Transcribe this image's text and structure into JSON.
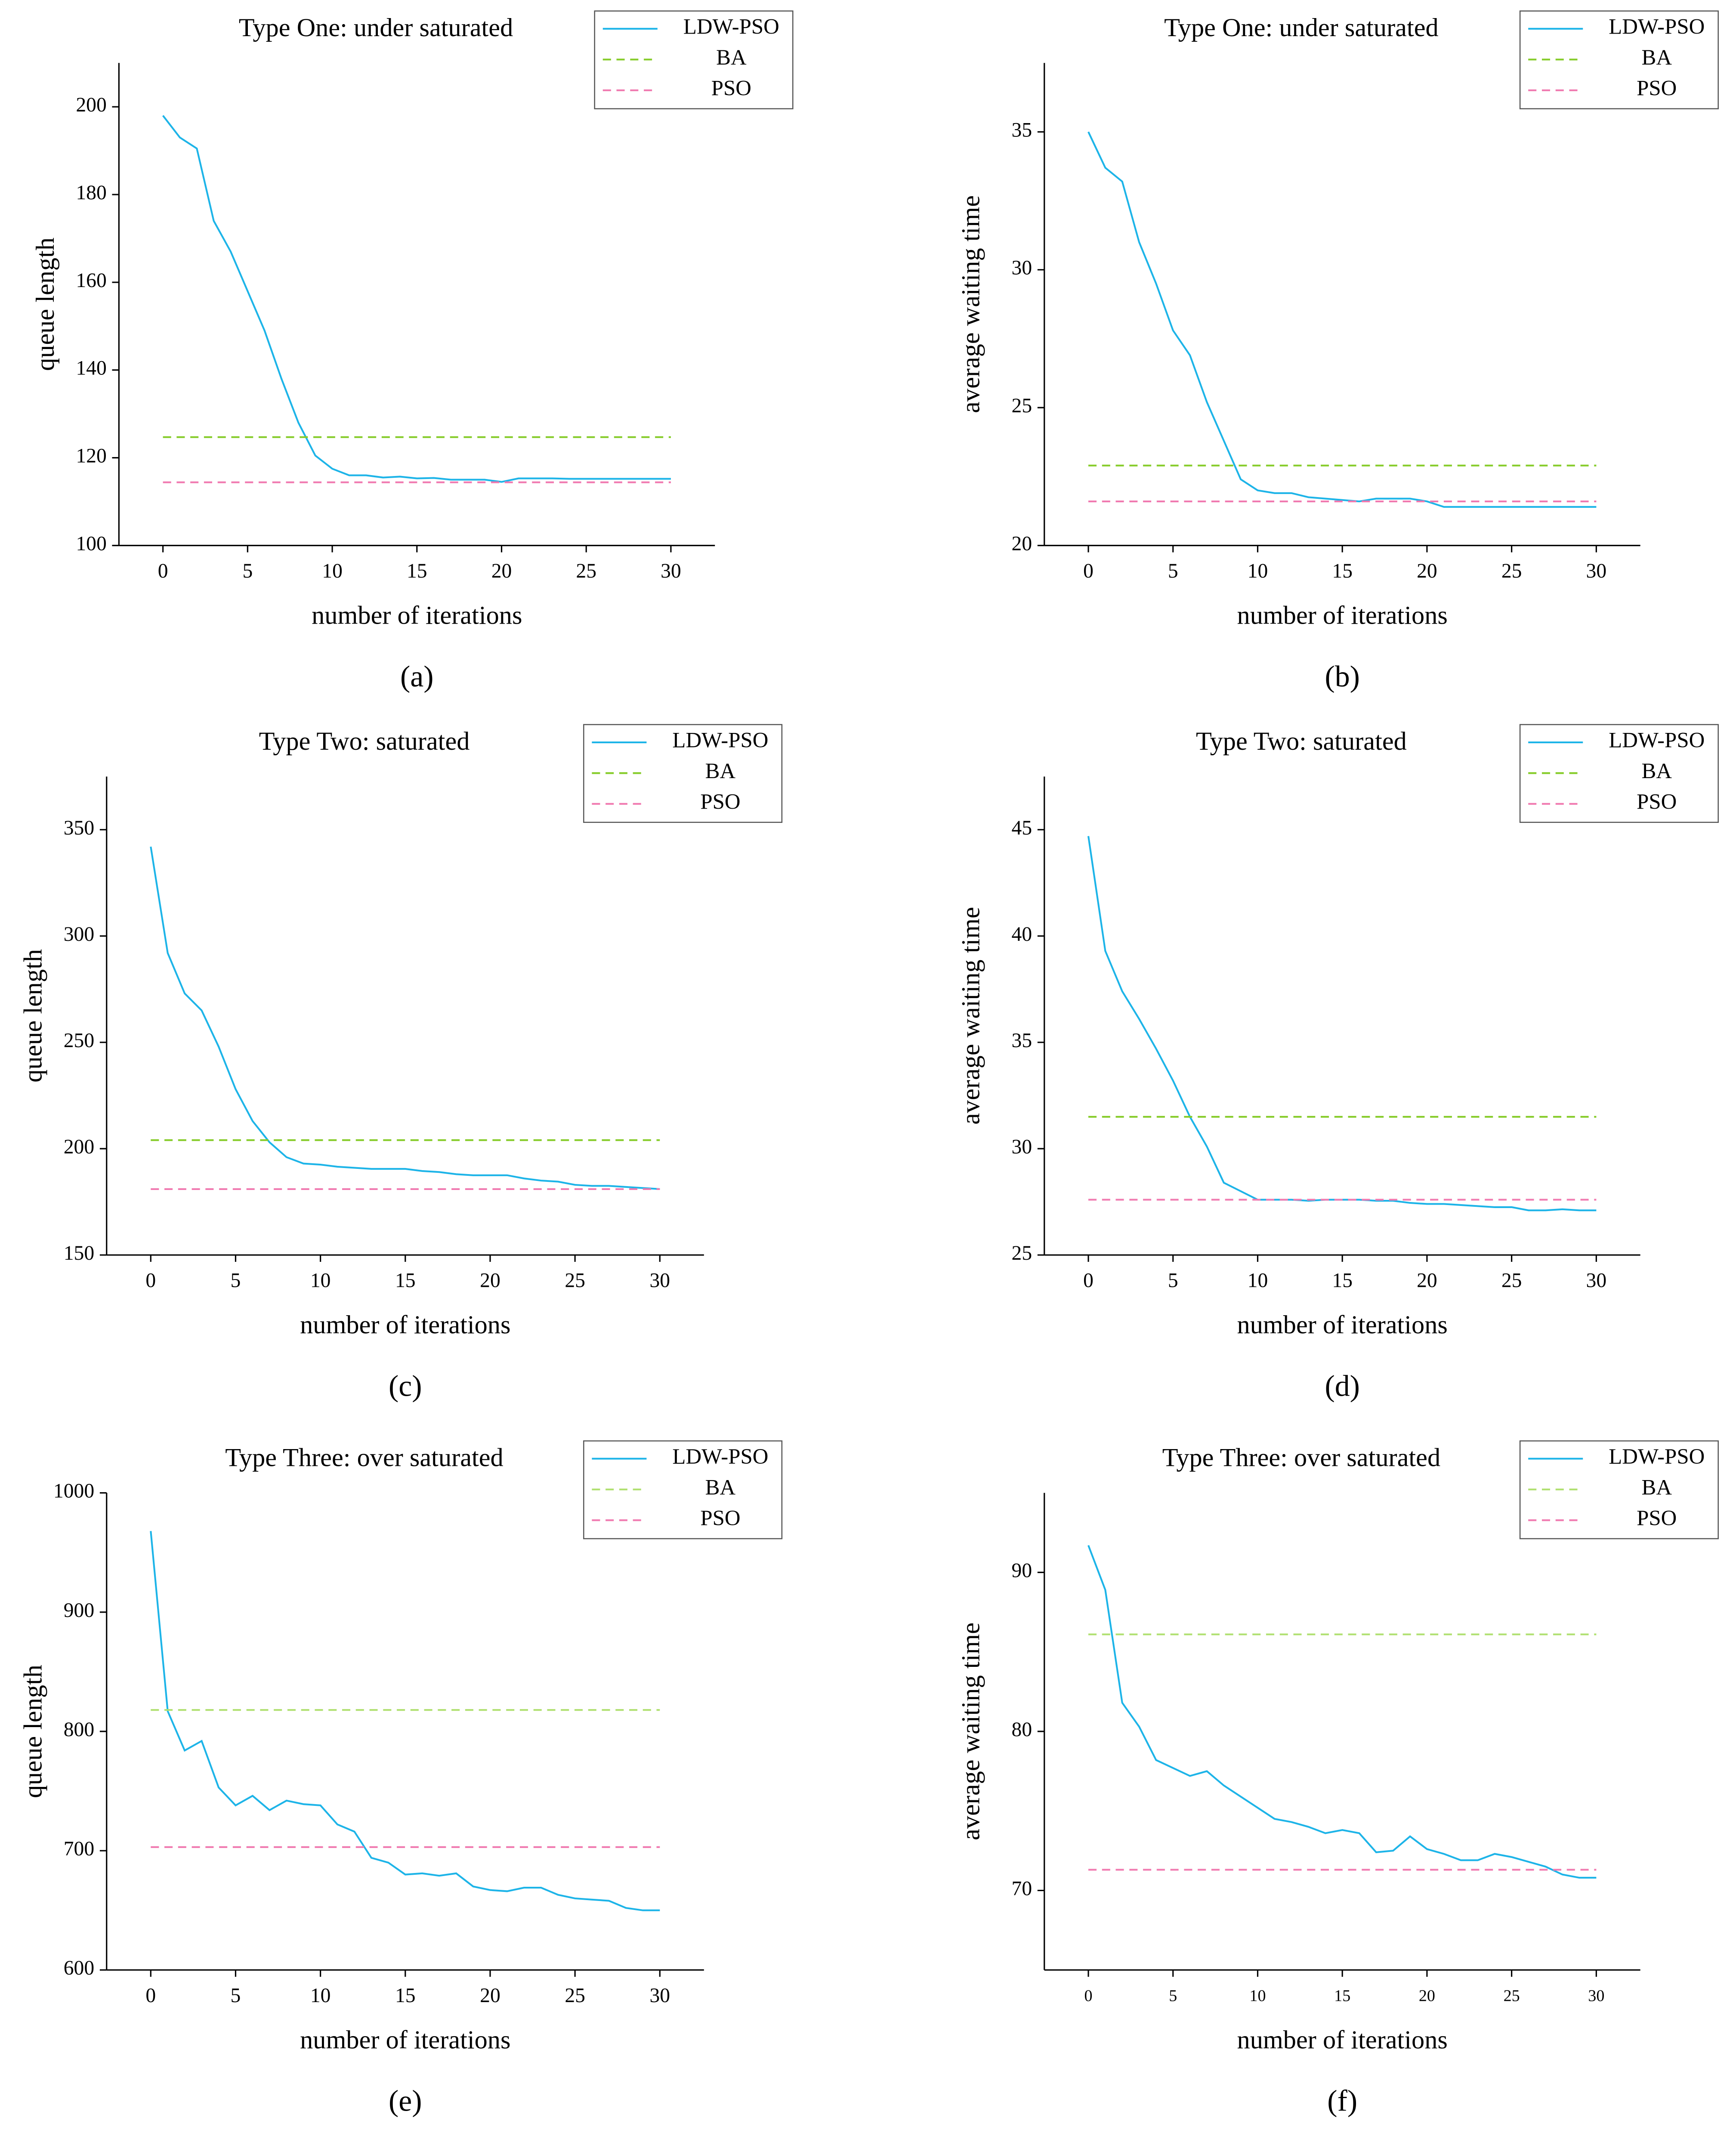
{
  "chart_data": [
    {
      "type": "line",
      "title": "Type One: under saturated",
      "xlabel": "number of iterations",
      "ylabel": "queue length",
      "caption": "(a)",
      "x": [
        0,
        1,
        2,
        3,
        4,
        5,
        6,
        7,
        8,
        9,
        10,
        11,
        12,
        13,
        14,
        15,
        16,
        17,
        18,
        19,
        20,
        21,
        22,
        23,
        24,
        25,
        26,
        27,
        28,
        29,
        30
      ],
      "xlim": [
        -2.6,
        32.6
      ],
      "xticks": [
        0,
        5,
        10,
        15,
        20,
        25,
        30
      ],
      "ylim": [
        100,
        210
      ],
      "yticks": [
        100,
        120,
        140,
        160,
        180,
        200
      ],
      "legend": "top right",
      "series": [
        {
          "name": "LDW-PSO",
          "color": "#1db4e8",
          "dash": false,
          "values": [
            198,
            193,
            190.5,
            174,
            167,
            158,
            149,
            138,
            128,
            120.5,
            117.5,
            116,
            116,
            115.5,
            115.7,
            115.3,
            115.4,
            115,
            115,
            115,
            114.5,
            115.3,
            115.3,
            115.3,
            115.2,
            115.2,
            115.2,
            115.2,
            115.2,
            115.2,
            115.2
          ]
        },
        {
          "name": "BA",
          "color": "#86cc2a",
          "dash": true,
          "values": [
            124.7,
            124.7,
            124.7,
            124.7,
            124.7,
            124.7,
            124.7,
            124.7,
            124.7,
            124.7,
            124.7,
            124.7,
            124.7,
            124.7,
            124.7,
            124.7,
            124.7,
            124.7,
            124.7,
            124.7,
            124.7,
            124.7,
            124.7,
            124.7,
            124.7,
            124.7,
            124.7,
            124.7,
            124.7,
            124.7,
            124.7
          ]
        },
        {
          "name": "PSO",
          "color": "#f07ab0",
          "dash": true,
          "values": [
            114.4,
            114.4,
            114.4,
            114.4,
            114.4,
            114.4,
            114.4,
            114.4,
            114.4,
            114.4,
            114.4,
            114.4,
            114.4,
            114.4,
            114.4,
            114.4,
            114.4,
            114.4,
            114.4,
            114.4,
            114.4,
            114.4,
            114.4,
            114.4,
            114.4,
            114.4,
            114.4,
            114.4,
            114.4,
            114.4,
            114.4
          ]
        }
      ]
    },
    {
      "type": "line",
      "title": "Type One: under saturated",
      "xlabel": "number of iterations",
      "ylabel": "average waiting time",
      "caption": "(b)",
      "x": [
        0,
        1,
        2,
        3,
        4,
        5,
        6,
        7,
        8,
        9,
        10,
        11,
        12,
        13,
        14,
        15,
        16,
        17,
        18,
        19,
        20,
        21,
        22,
        23,
        24,
        25,
        26,
        27,
        28,
        29,
        30
      ],
      "xlim": [
        -2.6,
        32.6
      ],
      "xticks": [
        0,
        5,
        10,
        15,
        20,
        25,
        30
      ],
      "ylim": [
        20,
        37.5
      ],
      "yticks": [
        20,
        25,
        30,
        35
      ],
      "legend": "top right",
      "series": [
        {
          "name": "LDW-PSO",
          "color": "#1db4e8",
          "dash": false,
          "values": [
            35,
            33.7,
            33.2,
            31,
            29.5,
            27.8,
            26.9,
            25.2,
            23.8,
            22.4,
            22.0,
            21.9,
            21.9,
            21.75,
            21.7,
            21.65,
            21.6,
            21.7,
            21.7,
            21.7,
            21.6,
            21.4,
            21.4,
            21.4,
            21.4,
            21.4,
            21.4,
            21.4,
            21.4,
            21.4,
            21.4
          ]
        },
        {
          "name": "BA",
          "color": "#86cc2a",
          "dash": true,
          "values": [
            22.9,
            22.9,
            22.9,
            22.9,
            22.9,
            22.9,
            22.9,
            22.9,
            22.9,
            22.9,
            22.9,
            22.9,
            22.9,
            22.9,
            22.9,
            22.9,
            22.9,
            22.9,
            22.9,
            22.9,
            22.9,
            22.9,
            22.9,
            22.9,
            22.9,
            22.9,
            22.9,
            22.9,
            22.9,
            22.9,
            22.9
          ]
        },
        {
          "name": "PSO",
          "color": "#f07ab0",
          "dash": true,
          "values": [
            21.6,
            21.6,
            21.6,
            21.6,
            21.6,
            21.6,
            21.6,
            21.6,
            21.6,
            21.6,
            21.6,
            21.6,
            21.6,
            21.6,
            21.6,
            21.6,
            21.6,
            21.6,
            21.6,
            21.6,
            21.6,
            21.6,
            21.6,
            21.6,
            21.6,
            21.6,
            21.6,
            21.6,
            21.6,
            21.6,
            21.6
          ]
        }
      ]
    },
    {
      "type": "line",
      "title": "Type Two: saturated",
      "xlabel": "number of iterations",
      "ylabel": "queue length",
      "caption": "(c)",
      "x": [
        0,
        1,
        2,
        3,
        4,
        5,
        6,
        7,
        8,
        9,
        10,
        11,
        12,
        13,
        14,
        15,
        16,
        17,
        18,
        19,
        20,
        21,
        22,
        23,
        24,
        25,
        26,
        27,
        28,
        29,
        30
      ],
      "xlim": [
        -2.6,
        32.6
      ],
      "xticks": [
        0,
        5,
        10,
        15,
        20,
        25,
        30
      ],
      "ylim": [
        150,
        375
      ],
      "yticks": [
        150,
        200,
        250,
        300,
        350
      ],
      "legend": "top right",
      "series": [
        {
          "name": "LDW-PSO",
          "color": "#1db4e8",
          "dash": false,
          "values": [
            342,
            292,
            273,
            265,
            248,
            228,
            213,
            203,
            196,
            193,
            192.5,
            191.5,
            191,
            190.5,
            190.5,
            190.5,
            189.5,
            189,
            188,
            187.5,
            187.5,
            187.5,
            186,
            185,
            184.5,
            183,
            182.5,
            182.5,
            182,
            181.5,
            181
          ]
        },
        {
          "name": "BA",
          "color": "#86cc2a",
          "dash": true,
          "values": [
            204,
            204,
            204,
            204,
            204,
            204,
            204,
            204,
            204,
            204,
            204,
            204,
            204,
            204,
            204,
            204,
            204,
            204,
            204,
            204,
            204,
            204,
            204,
            204,
            204,
            204,
            204,
            204,
            204,
            204,
            204
          ]
        },
        {
          "name": "PSO",
          "color": "#f07ab0",
          "dash": true,
          "values": [
            181,
            181,
            181,
            181,
            181,
            181,
            181,
            181,
            181,
            181,
            181,
            181,
            181,
            181,
            181,
            181,
            181,
            181,
            181,
            181,
            181,
            181,
            181,
            181,
            181,
            181,
            181,
            181,
            181,
            181,
            181
          ]
        }
      ]
    },
    {
      "type": "line",
      "title": "Type Two: saturated",
      "xlabel": "number of iterations",
      "ylabel": "average waiting time",
      "caption": "(d)",
      "x": [
        0,
        1,
        2,
        3,
        4,
        5,
        6,
        7,
        8,
        9,
        10,
        11,
        12,
        13,
        14,
        15,
        16,
        17,
        18,
        19,
        20,
        21,
        22,
        23,
        24,
        25,
        26,
        27,
        28,
        29,
        30
      ],
      "xlim": [
        -2.6,
        32.6
      ],
      "xticks": [
        0,
        5,
        10,
        15,
        20,
        25,
        30
      ],
      "ylim": [
        25,
        47.5
      ],
      "yticks": [
        25,
        30,
        35,
        40,
        45
      ],
      "legend": "top right",
      "series": [
        {
          "name": "LDW-PSO",
          "color": "#1db4e8",
          "dash": false,
          "values": [
            44.7,
            39.3,
            37.4,
            36.1,
            34.7,
            33.2,
            31.5,
            30.1,
            28.4,
            28,
            27.6,
            27.6,
            27.6,
            27.55,
            27.6,
            27.6,
            27.6,
            27.55,
            27.55,
            27.45,
            27.4,
            27.4,
            27.35,
            27.3,
            27.25,
            27.25,
            27.1,
            27.1,
            27.15,
            27.1,
            27.1
          ]
        },
        {
          "name": "BA",
          "color": "#86cc2a",
          "dash": true,
          "values": [
            31.5,
            31.5,
            31.5,
            31.5,
            31.5,
            31.5,
            31.5,
            31.5,
            31.5,
            31.5,
            31.5,
            31.5,
            31.5,
            31.5,
            31.5,
            31.5,
            31.5,
            31.5,
            31.5,
            31.5,
            31.5,
            31.5,
            31.5,
            31.5,
            31.5,
            31.5,
            31.5,
            31.5,
            31.5,
            31.5,
            31.5
          ]
        },
        {
          "name": "PSO",
          "color": "#f07ab0",
          "dash": true,
          "values": [
            27.6,
            27.6,
            27.6,
            27.6,
            27.6,
            27.6,
            27.6,
            27.6,
            27.6,
            27.6,
            27.6,
            27.6,
            27.6,
            27.6,
            27.6,
            27.6,
            27.6,
            27.6,
            27.6,
            27.6,
            27.6,
            27.6,
            27.6,
            27.6,
            27.6,
            27.6,
            27.6,
            27.6,
            27.6,
            27.6,
            27.6
          ]
        }
      ]
    },
    {
      "type": "line",
      "title": "Type Three: over saturated",
      "xlabel": "number of iterations",
      "ylabel": "queue length",
      "caption": "(e)",
      "x": [
        0,
        1,
        2,
        3,
        4,
        5,
        6,
        7,
        8,
        9,
        10,
        11,
        12,
        13,
        14,
        15,
        16,
        17,
        18,
        19,
        20,
        21,
        22,
        23,
        24,
        25,
        26,
        27,
        28,
        29,
        30
      ],
      "xlim": [
        -2.6,
        32.6
      ],
      "xticks": [
        0,
        5,
        10,
        15,
        20,
        25,
        30
      ],
      "ylim": [
        600,
        1000
      ],
      "yticks": [
        600,
        700,
        800,
        900,
        1000
      ],
      "legend": "top right",
      "series": [
        {
          "name": "LDW-PSO",
          "color": "#1db4e8",
          "dash": false,
          "values": [
            968,
            817,
            784,
            792,
            753,
            738,
            746,
            734,
            742,
            739,
            738,
            722,
            716,
            694,
            690,
            680,
            681,
            679,
            681,
            670,
            667,
            666,
            669,
            669,
            663,
            660,
            659,
            658,
            652,
            650,
            650
          ]
        },
        {
          "name": "BA",
          "color": "#b0e070",
          "dash": true,
          "values": [
            818,
            818,
            818,
            818,
            818,
            818,
            818,
            818,
            818,
            818,
            818,
            818,
            818,
            818,
            818,
            818,
            818,
            818,
            818,
            818,
            818,
            818,
            818,
            818,
            818,
            818,
            818,
            818,
            818,
            818,
            818
          ]
        },
        {
          "name": "PSO",
          "color": "#f07ab0",
          "dash": true,
          "values": [
            703,
            703,
            703,
            703,
            703,
            703,
            703,
            703,
            703,
            703,
            703,
            703,
            703,
            703,
            703,
            703,
            703,
            703,
            703,
            703,
            703,
            703,
            703,
            703,
            703,
            703,
            703,
            703,
            703,
            703,
            703
          ]
        }
      ]
    },
    {
      "type": "line",
      "title": "Type Three: over saturated",
      "xlabel": "number of iterations",
      "ylabel": "average waiting time",
      "caption": "(f)",
      "x": [
        0,
        1,
        2,
        3,
        4,
        5,
        6,
        7,
        8,
        9,
        10,
        11,
        12,
        13,
        14,
        15,
        16,
        17,
        18,
        19,
        20,
        21,
        22,
        23,
        24,
        25,
        26,
        27,
        28,
        29,
        30
      ],
      "xlim": [
        -2.6,
        32.6
      ],
      "xticks": [
        0,
        5,
        10,
        15,
        20,
        25,
        30
      ],
      "ylim": [
        65,
        95
      ],
      "yticks": [
        70,
        80,
        90
      ],
      "legend": "top right",
      "series": [
        {
          "name": "LDW-PSO",
          "color": "#1db4e8",
          "dash": false,
          "values": [
            91.7,
            88.9,
            81.8,
            80.3,
            78.2,
            77.7,
            77.2,
            77.5,
            76.6,
            75.9,
            75.2,
            74.5,
            74.3,
            74,
            73.6,
            73.8,
            73.6,
            72.4,
            72.5,
            73.4,
            72.6,
            72.3,
            71.9,
            71.9,
            72.3,
            72.1,
            71.8,
            71.5,
            71,
            70.8,
            70.8
          ]
        },
        {
          "name": "BA",
          "color": "#b0e070",
          "dash": true,
          "values": [
            86.1,
            86.1,
            86.1,
            86.1,
            86.1,
            86.1,
            86.1,
            86.1,
            86.1,
            86.1,
            86.1,
            86.1,
            86.1,
            86.1,
            86.1,
            86.1,
            86.1,
            86.1,
            86.1,
            86.1,
            86.1,
            86.1,
            86.1,
            86.1,
            86.1,
            86.1,
            86.1,
            86.1,
            86.1,
            86.1,
            86.1
          ]
        },
        {
          "name": "PSO",
          "color": "#f07ab0",
          "dash": true,
          "values": [
            71.3,
            71.3,
            71.3,
            71.3,
            71.3,
            71.3,
            71.3,
            71.3,
            71.3,
            71.3,
            71.3,
            71.3,
            71.3,
            71.3,
            71.3,
            71.3,
            71.3,
            71.3,
            71.3,
            71.3,
            71.3,
            71.3,
            71.3,
            71.3,
            71.3,
            71.3,
            71.3,
            71.3,
            71.3,
            71.3,
            71.3
          ]
        }
      ]
    }
  ]
}
